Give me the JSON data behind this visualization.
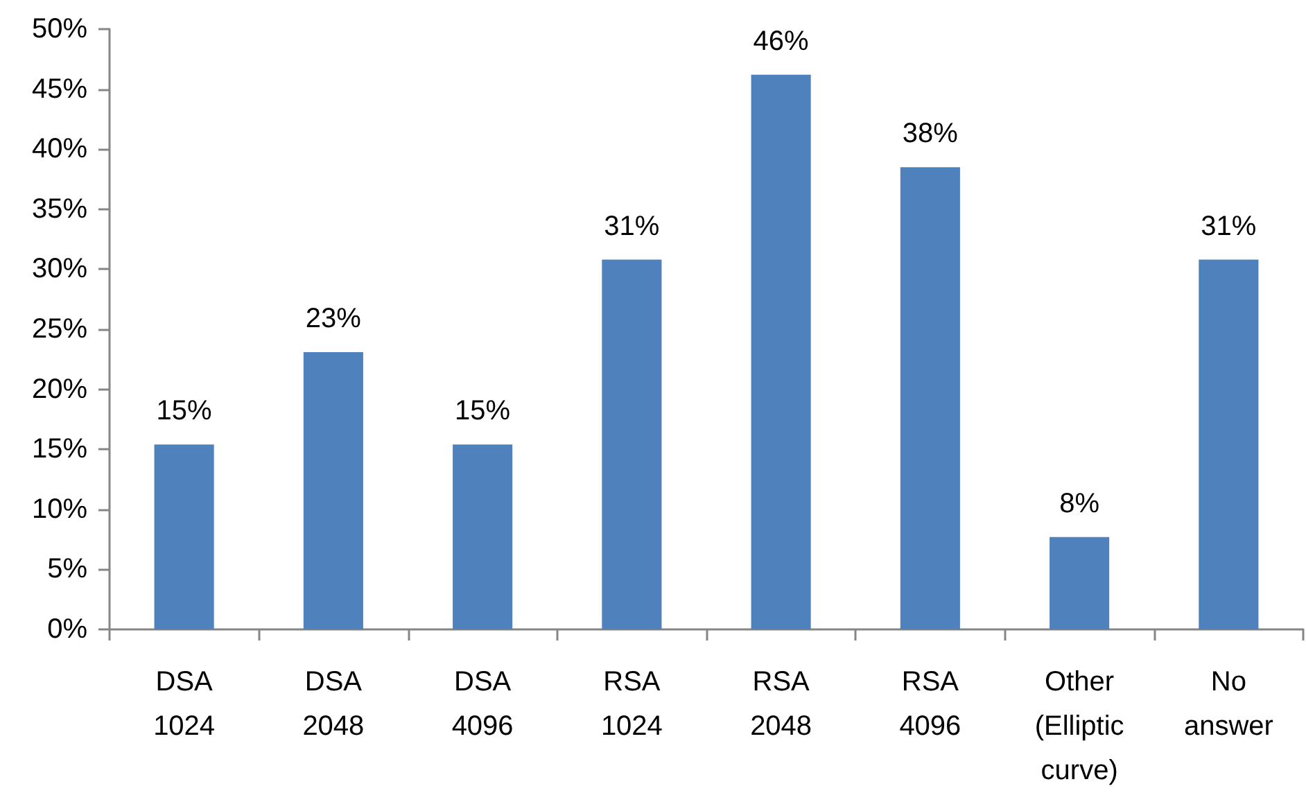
{
  "chart_data": {
    "type": "bar",
    "categories": [
      "DSA 1024",
      "DSA 2048",
      "DSA 4096",
      "RSA 1024",
      "RSA 2048",
      "RSA 4096",
      "Other (Elliptic curve)",
      "No answer"
    ],
    "values": [
      15.4,
      23.1,
      15.4,
      30.8,
      46.2,
      38.5,
      7.7,
      30.8
    ],
    "value_labels": [
      "15%",
      "23%",
      "15%",
      "31%",
      "46%",
      "38%",
      "8%",
      "31%"
    ],
    "color": "#4f81bd",
    "ylim": [
      0,
      50
    ],
    "yticks": [
      {
        "value": 0,
        "label": "0%"
      },
      {
        "value": 5,
        "label": "5%"
      },
      {
        "value": 10,
        "label": "10%"
      },
      {
        "value": 15,
        "label": "15%"
      },
      {
        "value": 20,
        "label": "20%"
      },
      {
        "value": 25,
        "label": "25%"
      },
      {
        "value": 30,
        "label": "30%"
      },
      {
        "value": 35,
        "label": "35%"
      },
      {
        "value": 40,
        "label": "40%"
      },
      {
        "value": 45,
        "label": "45%"
      },
      {
        "value": 50,
        "label": "50%"
      }
    ],
    "grid": false
  }
}
